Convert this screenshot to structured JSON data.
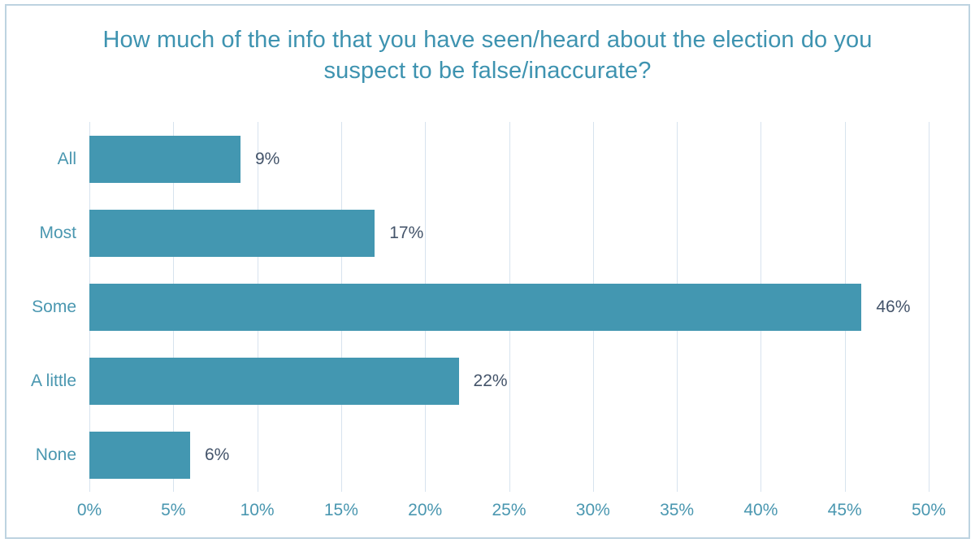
{
  "chart_data": {
    "type": "bar",
    "orientation": "horizontal",
    "title": "How much of the info that you have seen/heard about the election do you suspect to be false/inaccurate?",
    "categories": [
      "All",
      "Most",
      "Some",
      "A little",
      "None"
    ],
    "values": [
      9,
      17,
      46,
      22,
      6
    ],
    "data_labels": [
      "9%",
      "17%",
      "46%",
      "22%",
      "6%"
    ],
    "xlabel": "",
    "ylabel": "",
    "xlim": [
      0,
      50
    ],
    "x_tick_step": 5,
    "x_tick_labels": [
      "0%",
      "5%",
      "10%",
      "15%",
      "20%",
      "25%",
      "30%",
      "35%",
      "40%",
      "45%",
      "50%"
    ],
    "grid": true,
    "legend": false,
    "colors": {
      "bar_fill": "#4397b1",
      "title_text": "#3e93b0",
      "category_text": "#4a97b0",
      "tick_text": "#4a97b0",
      "data_label_text": "#44546a",
      "gridline": "#d7e3ee",
      "frame_border": "#bdd3e0",
      "background": "#ffffff"
    }
  }
}
